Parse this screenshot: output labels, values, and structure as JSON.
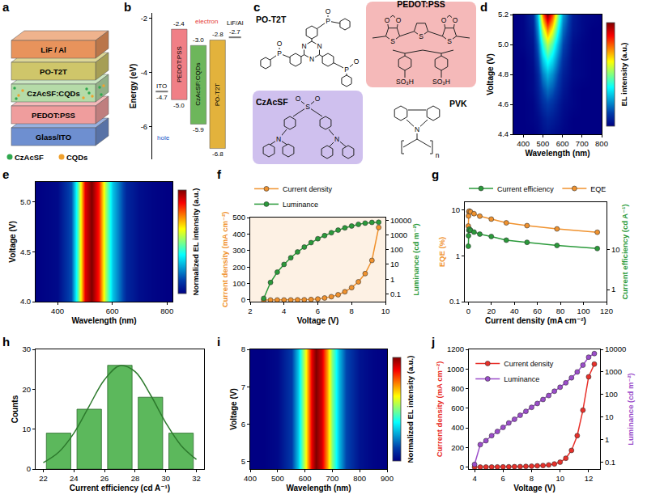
{
  "diagrams": {
    "a": {
      "panel": "a",
      "layers": [
        {
          "label": "LiF / Al",
          "color": "#e8935c"
        },
        {
          "label": "PO-T2T",
          "color": "#cfc66a"
        },
        {
          "label": "CzAcSF:CQDs",
          "color": "#b5dba8"
        },
        {
          "label": "PEDOT:PSS",
          "color": "#ef9d9d"
        },
        {
          "label": "Glass/ITO",
          "color": "#6e8fd0"
        }
      ],
      "legend": [
        {
          "name": "CzAcSF",
          "color": "#2fa84f"
        },
        {
          "name": "CQDs",
          "color": "#f0a12e"
        }
      ]
    },
    "c": {
      "panel": "c",
      "molecules": [
        {
          "name": "PO-T2T",
          "atoms": [
            "N",
            "N",
            "N",
            "P",
            "O",
            "P",
            "O",
            "P",
            "O"
          ]
        },
        {
          "name": "PEDOT:PSS",
          "atoms": [
            "S",
            "S",
            "S",
            "O",
            "O",
            "O",
            "O",
            "SO₃H",
            "SO₃H"
          ],
          "color": "#f5b9b9"
        },
        {
          "name": "CzAcSF",
          "atoms": [
            "S",
            "O",
            "O",
            "N",
            "N"
          ],
          "color": "#cfc0ee"
        },
        {
          "name": "PVK",
          "atoms": [
            "N",
            "n"
          ]
        }
      ]
    }
  },
  "chart_data": [
    {
      "panel": "b",
      "type": "energy_levels",
      "ylabel": "Energy (eV)",
      "ylim": [
        -7.2,
        -1.8
      ],
      "yticks": [
        -6,
        -4,
        -2
      ],
      "levels": [
        {
          "name": "ITO",
          "values": [
            -4.7
          ],
          "color": "#777777"
        },
        {
          "name": "PEDOT:PSS",
          "values": [
            -2.4,
            -5.0
          ],
          "value_labels": [
            "-2.4",
            "-5.0"
          ],
          "color": "#f07f86"
        },
        {
          "name": "CzAcSF:CQDs",
          "values": [
            -3.0,
            -5.9
          ],
          "value_labels": [
            "-3.0",
            "-5.9"
          ],
          "color": "#6db65b"
        },
        {
          "name": "PO-T2T",
          "values": [
            -2.8,
            -6.8
          ],
          "color": "#e3b23c"
        },
        {
          "name": "LiF/Al",
          "values": [
            -2.7
          ],
          "color": "#777777"
        }
      ],
      "annotations": [
        {
          "text": "electron",
          "color": "#e53935"
        },
        {
          "text": "hole",
          "color": "#2458c9"
        }
      ]
    },
    {
      "panel": "d",
      "type": "heatmap",
      "xlabel": "Wavelength (nm)",
      "ylabel": "Voltage (V)",
      "colorbar_title": "EL intensity (a.u.)",
      "zlim": [
        0,
        1
      ],
      "x": [
        350,
        400,
        450,
        475,
        500,
        525,
        550,
        575,
        600,
        650,
        700,
        750,
        800
      ],
      "y": [
        4.4,
        4.5,
        4.6,
        4.7,
        4.8,
        4.9,
        5.0,
        5.1,
        5.2
      ],
      "z": [
        [
          0,
          0,
          0,
          0.01,
          0.03,
          0.04,
          0.03,
          0.02,
          0.01,
          0,
          0,
          0,
          0
        ],
        [
          0,
          0,
          0.01,
          0.02,
          0.05,
          0.07,
          0.06,
          0.04,
          0.02,
          0,
          0,
          0,
          0
        ],
        [
          0,
          0,
          0.01,
          0.04,
          0.09,
          0.12,
          0.1,
          0.06,
          0.03,
          0.01,
          0,
          0,
          0
        ],
        [
          0,
          0,
          0.02,
          0.06,
          0.14,
          0.19,
          0.16,
          0.1,
          0.05,
          0.01,
          0,
          0,
          0
        ],
        [
          0,
          0,
          0.02,
          0.08,
          0.21,
          0.28,
          0.23,
          0.14,
          0.07,
          0.02,
          0.01,
          0,
          0
        ],
        [
          0,
          0,
          0.03,
          0.12,
          0.3,
          0.4,
          0.33,
          0.2,
          0.1,
          0.02,
          0.01,
          0,
          0
        ],
        [
          0,
          0.01,
          0.04,
          0.17,
          0.41,
          0.55,
          0.45,
          0.28,
          0.14,
          0.03,
          0.01,
          0,
          0
        ],
        [
          0,
          0.01,
          0.06,
          0.23,
          0.56,
          0.75,
          0.62,
          0.38,
          0.19,
          0.05,
          0.02,
          0,
          0
        ],
        [
          0,
          0.01,
          0.08,
          0.3,
          0.75,
          1,
          0.82,
          0.5,
          0.25,
          0.06,
          0.02,
          0.01,
          0
        ]
      ],
      "xlim": [
        350,
        800
      ],
      "xticks": [
        400,
        500,
        600,
        700,
        800
      ],
      "ylim": [
        4.4,
        5.2
      ],
      "yticks": [
        4.4,
        4.6,
        4.8,
        {
          "value": 5,
          "label": "5.0"
        },
        5.2
      ]
    },
    {
      "panel": "e",
      "type": "heatmap",
      "xlabel": "Wavelength (nm)",
      "ylabel": "Voltage (V)",
      "colorbar_title": "Normalized EL intensity (a.u.)",
      "zlim": [
        0,
        1
      ],
      "x": [
        320,
        400,
        450,
        475,
        500,
        525,
        550,
        575,
        600,
        650,
        700,
        750,
        800,
        820
      ],
      "y": [
        4.0,
        4.4,
        4.8,
        5.2
      ],
      "z": [
        [
          0,
          0.02,
          0.15,
          0.45,
          0.9,
          1,
          0.85,
          0.55,
          0.3,
          0.08,
          0.03,
          0.01,
          0,
          0
        ],
        [
          0,
          0.02,
          0.15,
          0.45,
          0.9,
          1,
          0.85,
          0.55,
          0.3,
          0.08,
          0.03,
          0.01,
          0,
          0
        ],
        [
          0,
          0.02,
          0.15,
          0.45,
          0.9,
          1,
          0.85,
          0.55,
          0.3,
          0.08,
          0.03,
          0.01,
          0,
          0
        ],
        [
          0,
          0.02,
          0.15,
          0.45,
          0.9,
          1,
          0.85,
          0.55,
          0.3,
          0.08,
          0.03,
          0.01,
          0,
          0
        ]
      ],
      "xlim": [
        320,
        820
      ],
      "xticks": [
        400,
        600,
        800
      ],
      "ylim": [
        4.0,
        5.2
      ],
      "yticks": [
        {
          "value": 4,
          "label": "4.0"
        },
        4.5,
        {
          "value": 5,
          "label": "5.0"
        }
      ]
    },
    {
      "panel": "f",
      "type": "line",
      "xlabel": "Voltage (V)",
      "ylabel": "Current density (mA cm⁻²)",
      "y2label": "Luminance (cd m⁻²)",
      "log": "y2",
      "legend": "top",
      "x": [
        2.8,
        3.2,
        3.6,
        4.0,
        4.4,
        4.8,
        5.2,
        5.6,
        6.0,
        6.4,
        6.8,
        7.2,
        7.6,
        8.0,
        8.4,
        8.8,
        9.2,
        9.6
      ],
      "series": [
        {
          "name": "Current density",
          "color": "#f0922e",
          "marker": "circle",
          "values": [
            0,
            0,
            0.1,
            0.2,
            0.4,
            0.8,
            1.5,
            3,
            6,
            12,
            20,
            32,
            50,
            75,
            110,
            160,
            240,
            440
          ]
        },
        {
          "name": "Luminance",
          "color": "#2a9a3a",
          "marker": "circle",
          "axis": "y2",
          "values": [
            0.05,
            0.6,
            3,
            10,
            28,
            70,
            150,
            300,
            550,
            900,
            1400,
            2100,
            3000,
            4000,
            5200,
            6300,
            7000,
            7200
          ]
        }
      ],
      "xlim": [
        2,
        10
      ],
      "xticks": [
        2,
        4,
        6,
        8,
        10
      ],
      "ylim": [
        -10,
        500
      ],
      "yticks": [
        0,
        100,
        200,
        300,
        400,
        500
      ],
      "y2lim": [
        0.03,
        15000
      ],
      "y2ticks": [
        0.1,
        1,
        10,
        100,
        1000,
        10000
      ]
    },
    {
      "panel": "g",
      "type": "line",
      "xlabel": "Current density (mA cm⁻²)",
      "ylabel": "EQE (%)",
      "y2label": "Current efficiency (cd A⁻¹)",
      "log": true,
      "legend": "top",
      "x": [
        0.05,
        0.2,
        0.5,
        1,
        2,
        5,
        10,
        20,
        33,
        51,
        77,
        112
      ],
      "series": [
        {
          "name": "Current efficiency",
          "color": "#2a9a3a",
          "marker": "circle",
          "axis": "y2",
          "values": [
            12,
            22,
            30,
            32,
            30,
            27,
            24,
            21,
            17,
            15,
            12.5,
            10.5
          ]
        },
        {
          "name": "EQE",
          "color": "#f0922e",
          "marker": "circle",
          "values": [
            4.5,
            7.5,
            9.3,
            9.6,
            9.2,
            8.4,
            7.4,
            6.4,
            5.3,
            4.6,
            3.9,
            3.3
          ]
        }
      ],
      "xlim": [
        -3,
        120
      ],
      "xticks": [
        0,
        20,
        40,
        60,
        80,
        100,
        120
      ],
      "ylim": [
        0.1,
        15
      ],
      "yticks": [
        0.1,
        1,
        10
      ],
      "y2lim": [
        0.5,
        150
      ],
      "y2ticks": [
        1,
        10
      ]
    },
    {
      "panel": "h",
      "type": "histogram",
      "xlabel": "Current efficiency (cd A⁻¹)",
      "ylabel": "Counts",
      "color": "#5cb85c",
      "bins": [
        22,
        24,
        26,
        28,
        30,
        32
      ],
      "counts": [
        9,
        15,
        26,
        18,
        9
      ],
      "fit": {
        "color": "#2d7a2d",
        "x": [
          22,
          23,
          24,
          25,
          26,
          27,
          28,
          29,
          30,
          31,
          32
        ],
        "y": [
          1.6,
          4.2,
          9.0,
          15.8,
          22.4,
          25.9,
          24.4,
          18.6,
          11.6,
          5.9,
          2.4
        ]
      },
      "xlim": [
        21.5,
        32.5
      ],
      "xticks": [
        22,
        24,
        26,
        28,
        30,
        32
      ],
      "ylim": [
        0,
        30
      ],
      "yticks": [
        0,
        10,
        20,
        30
      ]
    },
    {
      "panel": "i",
      "type": "heatmap",
      "xlabel": "Wavelength (nm)",
      "ylabel": "Voltage (V)",
      "colorbar_title": "Normalized EL intensity (a.u.)",
      "zlim": [
        0,
        1
      ],
      "x": [
        400,
        450,
        500,
        550,
        575,
        600,
        625,
        640,
        660,
        680,
        700,
        725,
        750,
        800,
        850,
        900
      ],
      "y": [
        4.8,
        6,
        7,
        8
      ],
      "z": [
        [
          0,
          0,
          0.02,
          0.12,
          0.3,
          0.6,
          0.9,
          1,
          0.92,
          0.72,
          0.5,
          0.28,
          0.14,
          0.04,
          0.01,
          0
        ],
        [
          0,
          0,
          0.02,
          0.12,
          0.3,
          0.6,
          0.9,
          1,
          0.92,
          0.72,
          0.5,
          0.28,
          0.14,
          0.04,
          0.01,
          0
        ],
        [
          0,
          0,
          0.02,
          0.12,
          0.3,
          0.6,
          0.9,
          1,
          0.92,
          0.72,
          0.5,
          0.28,
          0.14,
          0.04,
          0.01,
          0
        ],
        [
          0,
          0,
          0.02,
          0.12,
          0.3,
          0.6,
          0.9,
          1,
          0.92,
          0.72,
          0.5,
          0.28,
          0.14,
          0.04,
          0.01,
          0
        ]
      ],
      "xlim": [
        400,
        900
      ],
      "xticks": [
        400,
        500,
        600,
        700,
        800,
        900
      ],
      "ylim": [
        4.8,
        8
      ],
      "yticks": [
        5,
        6,
        7,
        8
      ]
    },
    {
      "panel": "j",
      "type": "line",
      "xlabel": "Voltage (V)",
      "ylabel": "Current density (mA cm⁻²)",
      "y2label": "Luminance (cd m⁻²)",
      "log": "y2",
      "legend": "top left",
      "x": [
        4.0,
        4.4,
        4.8,
        5.2,
        5.6,
        6.0,
        6.4,
        6.8,
        7.2,
        7.6,
        8.0,
        8.4,
        8.8,
        9.2,
        9.6,
        10.0,
        10.4,
        10.8,
        11.2,
        11.6,
        12.0,
        12.4
      ],
      "series": [
        {
          "name": "Current density",
          "color": "#e8302a",
          "marker": "circle",
          "values": [
            0,
            0,
            0.5,
            1,
            1.5,
            2,
            3,
            4,
            5,
            7,
            9,
            12,
            16,
            22,
            32,
            50,
            90,
            170,
            320,
            580,
            920,
            1050
          ]
        },
        {
          "name": "Luminance",
          "color": "#9b4dca",
          "marker": "circle",
          "axis": "y2",
          "values": [
            0.08,
            0.6,
            0.9,
            1.5,
            2.3,
            3.5,
            5.5,
            8,
            12,
            18,
            27,
            40,
            60,
            90,
            140,
            210,
            330,
            550,
            1000,
            2000,
            4500,
            6500
          ]
        }
      ],
      "xlim": [
        3.6,
        12.8
      ],
      "xticks": [
        4,
        6,
        8,
        10,
        12
      ],
      "ylim": [
        -20,
        1200
      ],
      "yticks": [
        0,
        200,
        400,
        600,
        800,
        1000,
        1200
      ],
      "y2lim": [
        0.05,
        10000
      ],
      "y2ticks": [
        0.1,
        1,
        10,
        100,
        1000,
        10000
      ]
    }
  ]
}
